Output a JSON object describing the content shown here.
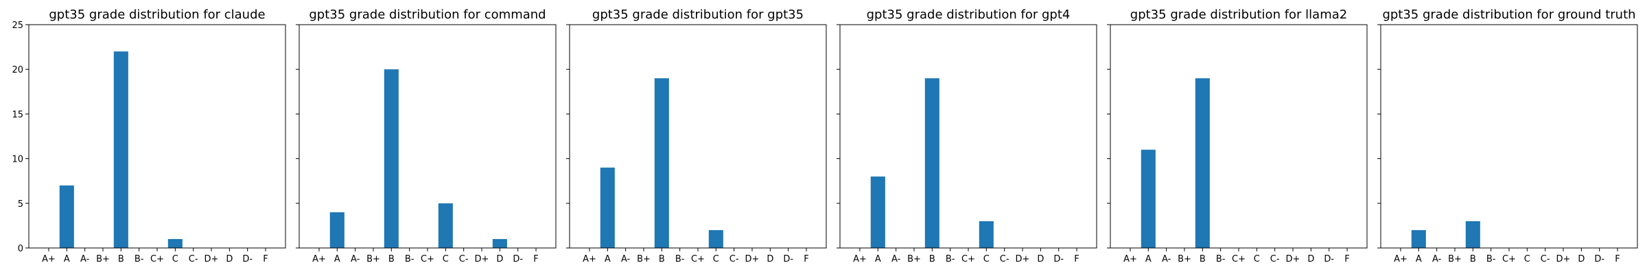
{
  "chart_data": [
    {
      "type": "bar",
      "title": "gpt35 grade distribution for claude",
      "categories": [
        "A+",
        "A",
        "A-",
        "B+",
        "B",
        "B-",
        "C+",
        "C",
        "C-",
        "D+",
        "D",
        "D-",
        "F"
      ],
      "values": [
        0,
        7,
        0,
        0,
        22,
        0,
        0,
        1,
        0,
        0,
        0,
        0,
        0
      ],
      "color": "#1f77b4",
      "ylim": [
        0,
        25
      ],
      "yticks": [
        0,
        5,
        10,
        15,
        20,
        25
      ],
      "show_ytick_labels": true,
      "grid": false
    },
    {
      "type": "bar",
      "title": "gpt35 grade distribution for command",
      "categories": [
        "A+",
        "A",
        "A-",
        "B+",
        "B",
        "B-",
        "C+",
        "C",
        "C-",
        "D+",
        "D",
        "D-",
        "F"
      ],
      "values": [
        0,
        4,
        0,
        0,
        20,
        0,
        0,
        5,
        0,
        0,
        1,
        0,
        0
      ],
      "color": "#1f77b4",
      "ylim": [
        0,
        25
      ],
      "yticks": [
        0,
        5,
        10,
        15,
        20,
        25
      ],
      "show_ytick_labels": false,
      "grid": false
    },
    {
      "type": "bar",
      "title": "gpt35 grade distribution for gpt35",
      "categories": [
        "A+",
        "A",
        "A-",
        "B+",
        "B",
        "B-",
        "C+",
        "C",
        "C-",
        "D+",
        "D",
        "D-",
        "F"
      ],
      "values": [
        0,
        9,
        0,
        0,
        19,
        0,
        0,
        2,
        0,
        0,
        0,
        0,
        0
      ],
      "color": "#1f77b4",
      "ylim": [
        0,
        25
      ],
      "yticks": [
        0,
        5,
        10,
        15,
        20,
        25
      ],
      "show_ytick_labels": false,
      "grid": false
    },
    {
      "type": "bar",
      "title": "gpt35 grade distribution for gpt4",
      "categories": [
        "A+",
        "A",
        "A-",
        "B+",
        "B",
        "B-",
        "C+",
        "C",
        "C-",
        "D+",
        "D",
        "D-",
        "F"
      ],
      "values": [
        0,
        8,
        0,
        0,
        19,
        0,
        0,
        3,
        0,
        0,
        0,
        0,
        0
      ],
      "color": "#1f77b4",
      "ylim": [
        0,
        25
      ],
      "yticks": [
        0,
        5,
        10,
        15,
        20,
        25
      ],
      "show_ytick_labels": false,
      "grid": false
    },
    {
      "type": "bar",
      "title": "gpt35 grade distribution for llama2",
      "categories": [
        "A+",
        "A",
        "A-",
        "B+",
        "B",
        "B-",
        "C+",
        "C",
        "C-",
        "D+",
        "D",
        "D-",
        "F"
      ],
      "values": [
        0,
        11,
        0,
        0,
        19,
        0,
        0,
        0,
        0,
        0,
        0,
        0,
        0
      ],
      "color": "#1f77b4",
      "ylim": [
        0,
        25
      ],
      "yticks": [
        0,
        5,
        10,
        15,
        20,
        25
      ],
      "show_ytick_labels": false,
      "grid": false
    },
    {
      "type": "bar",
      "title": "gpt35 grade distribution for ground truth",
      "categories": [
        "A+",
        "A",
        "A-",
        "B+",
        "B",
        "B-",
        "C+",
        "C",
        "C-",
        "D+",
        "D",
        "D-",
        "F"
      ],
      "values": [
        0,
        2,
        0,
        0,
        3,
        0,
        0,
        0,
        0,
        0,
        0,
        0,
        0
      ],
      "color": "#1f77b4",
      "ylim": [
        0,
        25
      ],
      "yticks": [
        0,
        5,
        10,
        15,
        20,
        25
      ],
      "show_ytick_labels": false,
      "grid": false
    }
  ]
}
